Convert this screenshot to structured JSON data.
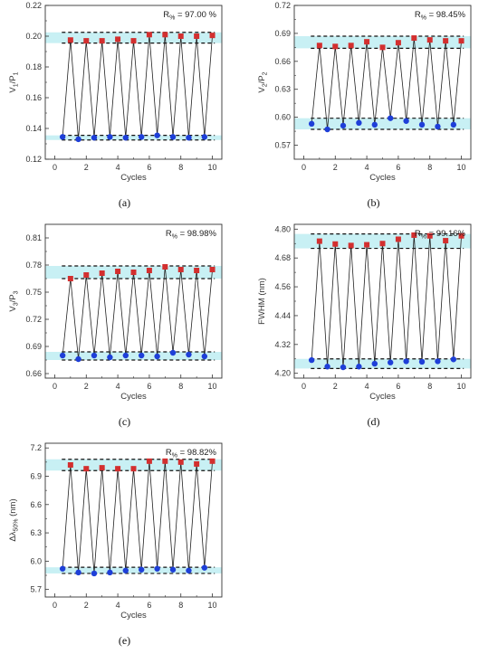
{
  "chart_data": [
    {
      "id": "a",
      "type": "line",
      "panel_label": "(a)",
      "xlabel": "Cycles",
      "ylabel": "V1/P1",
      "ylabel_main": "V",
      "ylabel_sub1": "1",
      "ylabel_mid": "/P",
      "ylabel_sub2": "1",
      "r_main": "R",
      "r_sub": "%",
      "r_value": " = 97.00 %",
      "xlim": [
        -0.6,
        10.6
      ],
      "ylim": [
        0.12,
        0.22
      ],
      "xticks": [
        0,
        2,
        4,
        6,
        8,
        10
      ],
      "yticks": [
        0.12,
        0.14,
        0.16,
        0.18,
        0.2,
        0.22
      ],
      "ytick_decimals": 2,
      "high_band": [
        0.1955,
        0.2025
      ],
      "low_band": [
        0.1325,
        0.1355
      ],
      "points": [
        {
          "x": 0.5,
          "y": 0.1345,
          "state": "low"
        },
        {
          "x": 1.0,
          "y": 0.1975,
          "state": "high"
        },
        {
          "x": 1.5,
          "y": 0.133,
          "state": "low"
        },
        {
          "x": 2.0,
          "y": 0.197,
          "state": "high"
        },
        {
          "x": 2.5,
          "y": 0.134,
          "state": "low"
        },
        {
          "x": 3.0,
          "y": 0.197,
          "state": "high"
        },
        {
          "x": 3.5,
          "y": 0.1345,
          "state": "low"
        },
        {
          "x": 4.0,
          "y": 0.198,
          "state": "high"
        },
        {
          "x": 4.5,
          "y": 0.134,
          "state": "low"
        },
        {
          "x": 5.0,
          "y": 0.197,
          "state": "high"
        },
        {
          "x": 5.5,
          "y": 0.1345,
          "state": "low"
        },
        {
          "x": 6.0,
          "y": 0.201,
          "state": "high"
        },
        {
          "x": 6.5,
          "y": 0.1355,
          "state": "low"
        },
        {
          "x": 7.0,
          "y": 0.201,
          "state": "high"
        },
        {
          "x": 7.5,
          "y": 0.1345,
          "state": "low"
        },
        {
          "x": 8.0,
          "y": 0.2,
          "state": "high"
        },
        {
          "x": 8.5,
          "y": 0.134,
          "state": "low"
        },
        {
          "x": 9.0,
          "y": 0.2,
          "state": "high"
        },
        {
          "x": 9.5,
          "y": 0.1345,
          "state": "low"
        },
        {
          "x": 10.0,
          "y": 0.2005,
          "state": "high"
        }
      ]
    },
    {
      "id": "b",
      "type": "line",
      "panel_label": "(b)",
      "xlabel": "Cycles",
      "ylabel": "V2/P2",
      "ylabel_main": "V",
      "ylabel_sub1": "2",
      "ylabel_mid": "/P",
      "ylabel_sub2": "2",
      "r_main": "R",
      "r_sub": "%",
      "r_value": " = 98.45%",
      "xlim": [
        -0.6,
        10.6
      ],
      "ylim": [
        0.555,
        0.72
      ],
      "xticks": [
        0,
        2,
        4,
        6,
        8,
        10
      ],
      "yticks": [
        0.57,
        0.6,
        0.63,
        0.66,
        0.69,
        0.72
      ],
      "ytick_decimals": 2,
      "high_band": [
        0.674,
        0.687
      ],
      "low_band": [
        0.587,
        0.599
      ],
      "points": [
        {
          "x": 0.5,
          "y": 0.593,
          "state": "low"
        },
        {
          "x": 1.0,
          "y": 0.677,
          "state": "high"
        },
        {
          "x": 1.5,
          "y": 0.587,
          "state": "low"
        },
        {
          "x": 2.0,
          "y": 0.676,
          "state": "high"
        },
        {
          "x": 2.5,
          "y": 0.591,
          "state": "low"
        },
        {
          "x": 3.0,
          "y": 0.677,
          "state": "high"
        },
        {
          "x": 3.5,
          "y": 0.594,
          "state": "low"
        },
        {
          "x": 4.0,
          "y": 0.681,
          "state": "high"
        },
        {
          "x": 4.5,
          "y": 0.592,
          "state": "low"
        },
        {
          "x": 5.0,
          "y": 0.675,
          "state": "high"
        },
        {
          "x": 5.5,
          "y": 0.599,
          "state": "low"
        },
        {
          "x": 6.0,
          "y": 0.68,
          "state": "high"
        },
        {
          "x": 6.5,
          "y": 0.596,
          "state": "low"
        },
        {
          "x": 7.0,
          "y": 0.685,
          "state": "high"
        },
        {
          "x": 7.5,
          "y": 0.592,
          "state": "low"
        },
        {
          "x": 8.0,
          "y": 0.683,
          "state": "high"
        },
        {
          "x": 8.5,
          "y": 0.59,
          "state": "low"
        },
        {
          "x": 9.0,
          "y": 0.682,
          "state": "high"
        },
        {
          "x": 9.5,
          "y": 0.592,
          "state": "low"
        },
        {
          "x": 10.0,
          "y": 0.682,
          "state": "high"
        }
      ]
    },
    {
      "id": "c",
      "type": "line",
      "panel_label": "(c)",
      "xlabel": "Cycles",
      "ylabel": "V3/P3",
      "ylabel_main": "V",
      "ylabel_sub1": "3",
      "ylabel_mid": "/P",
      "ylabel_sub2": "3",
      "r_main": "R",
      "r_sub": "%",
      "r_value": " = 98.98%",
      "xlim": [
        -0.6,
        10.6
      ],
      "ylim": [
        0.655,
        0.825
      ],
      "xticks": [
        0,
        2,
        4,
        6,
        8,
        10
      ],
      "yticks": [
        0.66,
        0.69,
        0.72,
        0.75,
        0.78,
        0.81
      ],
      "ytick_decimals": 2,
      "high_band": [
        0.765,
        0.779
      ],
      "low_band": [
        0.675,
        0.684
      ],
      "points": [
        {
          "x": 0.5,
          "y": 0.68,
          "state": "low"
        },
        {
          "x": 1.0,
          "y": 0.765,
          "state": "high"
        },
        {
          "x": 1.5,
          "y": 0.676,
          "state": "low"
        },
        {
          "x": 2.0,
          "y": 0.769,
          "state": "high"
        },
        {
          "x": 2.5,
          "y": 0.68,
          "state": "low"
        },
        {
          "x": 3.0,
          "y": 0.771,
          "state": "high"
        },
        {
          "x": 3.5,
          "y": 0.678,
          "state": "low"
        },
        {
          "x": 4.0,
          "y": 0.773,
          "state": "high"
        },
        {
          "x": 4.5,
          "y": 0.68,
          "state": "low"
        },
        {
          "x": 5.0,
          "y": 0.772,
          "state": "high"
        },
        {
          "x": 5.5,
          "y": 0.68,
          "state": "low"
        },
        {
          "x": 6.0,
          "y": 0.774,
          "state": "high"
        },
        {
          "x": 6.5,
          "y": 0.679,
          "state": "low"
        },
        {
          "x": 7.0,
          "y": 0.778,
          "state": "high"
        },
        {
          "x": 7.5,
          "y": 0.683,
          "state": "low"
        },
        {
          "x": 8.0,
          "y": 0.775,
          "state": "high"
        },
        {
          "x": 8.5,
          "y": 0.681,
          "state": "low"
        },
        {
          "x": 9.0,
          "y": 0.774,
          "state": "high"
        },
        {
          "x": 9.5,
          "y": 0.679,
          "state": "low"
        },
        {
          "x": 10.0,
          "y": 0.775,
          "state": "high"
        }
      ]
    },
    {
      "id": "d",
      "type": "line",
      "panel_label": "(d)",
      "xlabel": "Cycles",
      "ylabel": "FWHM (nm)",
      "r_main": "R",
      "r_sub": "%",
      "r_value": " = 99.16%",
      "xlim": [
        -0.6,
        10.6
      ],
      "ylim": [
        4.18,
        4.82
      ],
      "xticks": [
        0,
        2,
        4,
        6,
        8,
        10
      ],
      "yticks": [
        4.2,
        4.32,
        4.44,
        4.56,
        4.68,
        4.8
      ],
      "ytick_decimals": 2,
      "high_band": [
        4.72,
        4.78
      ],
      "low_band": [
        4.22,
        4.26
      ],
      "points": [
        {
          "x": 0.5,
          "y": 4.255,
          "state": "low"
        },
        {
          "x": 1.0,
          "y": 4.75,
          "state": "high"
        },
        {
          "x": 1.5,
          "y": 4.228,
          "state": "low"
        },
        {
          "x": 2.0,
          "y": 4.738,
          "state": "high"
        },
        {
          "x": 2.5,
          "y": 4.225,
          "state": "low"
        },
        {
          "x": 3.0,
          "y": 4.732,
          "state": "high"
        },
        {
          "x": 3.5,
          "y": 4.228,
          "state": "low"
        },
        {
          "x": 4.0,
          "y": 4.735,
          "state": "high"
        },
        {
          "x": 4.5,
          "y": 4.24,
          "state": "low"
        },
        {
          "x": 5.0,
          "y": 4.74,
          "state": "high"
        },
        {
          "x": 5.5,
          "y": 4.245,
          "state": "low"
        },
        {
          "x": 6.0,
          "y": 4.758,
          "state": "high"
        },
        {
          "x": 6.5,
          "y": 4.25,
          "state": "low"
        },
        {
          "x": 7.0,
          "y": 4.775,
          "state": "high"
        },
        {
          "x": 7.5,
          "y": 4.248,
          "state": "low"
        },
        {
          "x": 8.0,
          "y": 4.772,
          "state": "high"
        },
        {
          "x": 8.5,
          "y": 4.25,
          "state": "low"
        },
        {
          "x": 9.0,
          "y": 4.752,
          "state": "high"
        },
        {
          "x": 9.5,
          "y": 4.258,
          "state": "low"
        },
        {
          "x": 10.0,
          "y": 4.772,
          "state": "high"
        }
      ]
    },
    {
      "id": "e",
      "type": "line",
      "panel_label": "(e)",
      "xlabel": "Cycles",
      "ylabel": "Δλ 50% (nm)",
      "ylabel_main": "Δλ",
      "ylabel_sub1": "50%",
      "ylabel_mid": " (nm)",
      "ylabel_sub2": "",
      "r_main": "R",
      "r_sub": "%",
      "r_value": " = 98.82%",
      "xlim": [
        -0.6,
        10.6
      ],
      "ylim": [
        5.62,
        7.25
      ],
      "xticks": [
        0,
        2,
        4,
        6,
        8,
        10
      ],
      "yticks": [
        5.7,
        6.0,
        6.3,
        6.6,
        6.9,
        7.2
      ],
      "ytick_decimals": 1,
      "high_band": [
        6.96,
        7.08
      ],
      "low_band": [
        5.87,
        5.935
      ],
      "points": [
        {
          "x": 0.5,
          "y": 5.92,
          "state": "low"
        },
        {
          "x": 1.0,
          "y": 7.02,
          "state": "high"
        },
        {
          "x": 1.5,
          "y": 5.88,
          "state": "low"
        },
        {
          "x": 2.0,
          "y": 6.98,
          "state": "high"
        },
        {
          "x": 2.5,
          "y": 5.87,
          "state": "low"
        },
        {
          "x": 3.0,
          "y": 6.99,
          "state": "high"
        },
        {
          "x": 3.5,
          "y": 5.88,
          "state": "low"
        },
        {
          "x": 4.0,
          "y": 6.98,
          "state": "high"
        },
        {
          "x": 4.5,
          "y": 5.9,
          "state": "low"
        },
        {
          "x": 5.0,
          "y": 6.98,
          "state": "high"
        },
        {
          "x": 5.5,
          "y": 5.91,
          "state": "low"
        },
        {
          "x": 6.0,
          "y": 7.06,
          "state": "high"
        },
        {
          "x": 6.5,
          "y": 5.92,
          "state": "low"
        },
        {
          "x": 7.0,
          "y": 7.06,
          "state": "high"
        },
        {
          "x": 7.5,
          "y": 5.91,
          "state": "low"
        },
        {
          "x": 8.0,
          "y": 7.05,
          "state": "high"
        },
        {
          "x": 8.5,
          "y": 5.9,
          "state": "low"
        },
        {
          "x": 9.0,
          "y": 7.03,
          "state": "high"
        },
        {
          "x": 9.5,
          "y": 5.93,
          "state": "low"
        },
        {
          "x": 10.0,
          "y": 7.06,
          "state": "high"
        }
      ]
    }
  ],
  "colors": {
    "band_fill": "#c8f0f4",
    "band_line": "#111111",
    "high_marker": "#d32f2f",
    "low_marker": "#1e3fd8",
    "connect_line": "#222222",
    "axis": "#333333"
  }
}
